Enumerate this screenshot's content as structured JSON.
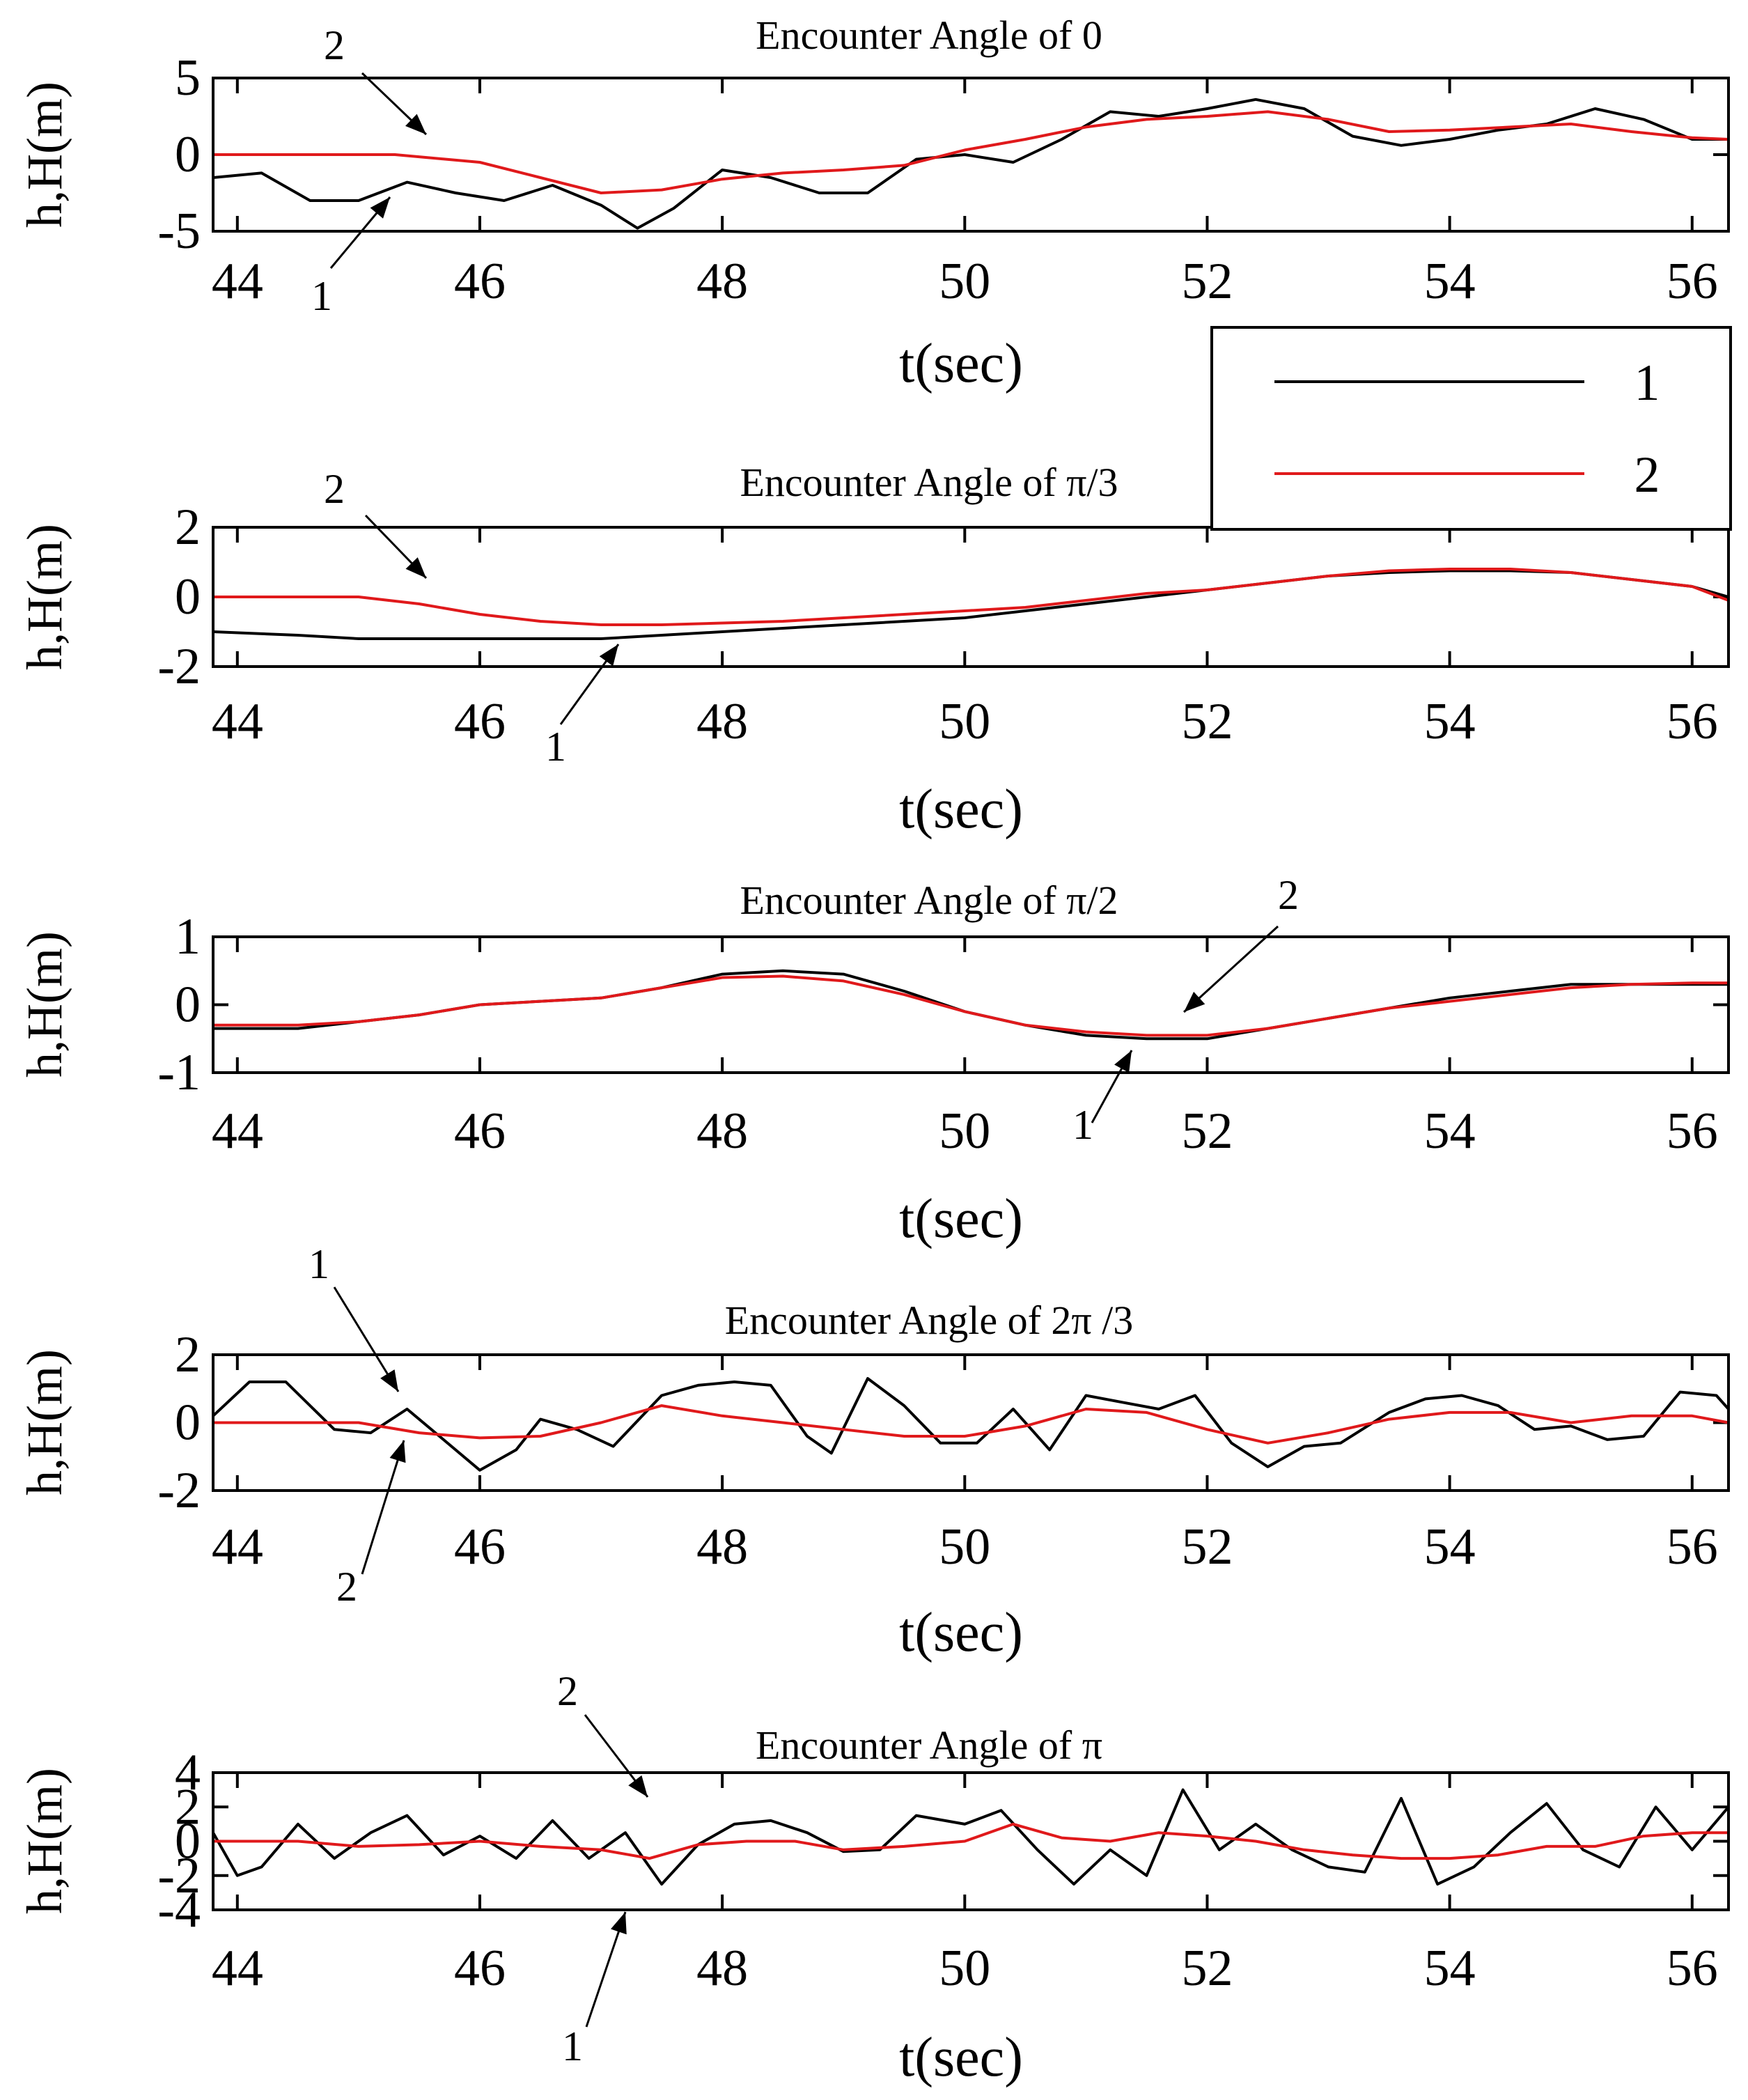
{
  "chart_data": [
    {
      "type": "line",
      "title": "Encounter Angle of 0",
      "xlabel": "t(sec)",
      "ylabel": "h,H(m)",
      "xlim": [
        43.8,
        56.3
      ],
      "ylim": [
        -5,
        5
      ],
      "xticks": [
        "44",
        "46",
        "48",
        "50",
        "52",
        "54",
        "56"
      ],
      "yticks": [
        "5",
        "0",
        "-5"
      ],
      "annotations": [
        "2",
        "1"
      ],
      "series": [
        {
          "name": "1",
          "color": "#000000",
          "x": [
            43.8,
            44.2,
            44.6,
            45.0,
            45.4,
            45.8,
            46.2,
            46.6,
            47.0,
            47.3,
            47.6,
            48.0,
            48.4,
            48.8,
            49.2,
            49.6,
            50.0,
            50.4,
            50.8,
            51.2,
            51.6,
            52.0,
            52.4,
            52.8,
            53.2,
            53.6,
            54.0,
            54.4,
            54.8,
            55.2,
            55.6,
            56.0,
            56.3
          ],
          "y": [
            -1.5,
            -1.2,
            -3.0,
            -3.0,
            -1.8,
            -2.5,
            -3.0,
            -2.0,
            -3.3,
            -4.8,
            -3.5,
            -1.0,
            -1.5,
            -2.5,
            -2.5,
            -0.3,
            0.0,
            -0.5,
            1.0,
            2.8,
            2.5,
            3.0,
            3.6,
            3.0,
            1.2,
            0.6,
            1.0,
            1.6,
            2.0,
            3.0,
            2.3,
            1.0,
            1.0
          ]
        },
        {
          "name": "2",
          "color": "#e0191b",
          "x": [
            43.8,
            44.5,
            45.3,
            46.0,
            46.5,
            47.0,
            47.5,
            48.0,
            48.5,
            49.0,
            49.5,
            50.0,
            50.5,
            51.0,
            51.5,
            52.0,
            52.5,
            53.0,
            53.5,
            54.0,
            54.5,
            55.0,
            55.5,
            56.0,
            56.3
          ],
          "y": [
            0.0,
            0.0,
            0.0,
            -0.5,
            -1.5,
            -2.5,
            -2.3,
            -1.6,
            -1.2,
            -1.0,
            -0.7,
            0.3,
            1.0,
            1.8,
            2.3,
            2.5,
            2.8,
            2.3,
            1.5,
            1.6,
            1.8,
            2.0,
            1.5,
            1.1,
            1.0
          ]
        }
      ]
    },
    {
      "type": "line",
      "title": "Encounter Angle of π/3",
      "xlabel": "t(sec)",
      "ylabel": "h,H(m)",
      "xlim": [
        43.8,
        56.3
      ],
      "ylim": [
        -2,
        2
      ],
      "xticks": [
        "44",
        "46",
        "48",
        "50",
        "52",
        "54",
        "56"
      ],
      "yticks": [
        "2",
        "0",
        "-2"
      ],
      "annotations": [
        "2",
        "1"
      ],
      "series": [
        {
          "name": "1",
          "color": "#000000",
          "x": [
            43.8,
            44.5,
            45.0,
            45.5,
            46.0,
            46.5,
            47.0,
            47.5,
            48.0,
            48.5,
            49.0,
            49.5,
            50.0,
            50.5,
            51.0,
            51.5,
            52.0,
            52.5,
            53.0,
            53.5,
            54.0,
            54.5,
            55.0,
            55.5,
            56.0,
            56.3
          ],
          "y": [
            -1.0,
            -1.1,
            -1.2,
            -1.2,
            -1.2,
            -1.2,
            -1.2,
            -1.1,
            -1.0,
            -0.9,
            -0.8,
            -0.7,
            -0.6,
            -0.4,
            -0.2,
            0.0,
            0.2,
            0.4,
            0.6,
            0.7,
            0.75,
            0.75,
            0.7,
            0.5,
            0.3,
            0.0
          ]
        },
        {
          "name": "2",
          "color": "#e0191b",
          "x": [
            43.8,
            44.5,
            45.0,
            45.5,
            46.0,
            46.5,
            47.0,
            47.5,
            48.0,
            48.5,
            49.0,
            49.5,
            50.0,
            50.5,
            51.0,
            51.5,
            52.0,
            52.5,
            53.0,
            53.5,
            54.0,
            54.5,
            55.0,
            55.5,
            56.0,
            56.3
          ],
          "y": [
            0.0,
            0.0,
            0.0,
            -0.2,
            -0.5,
            -0.7,
            -0.8,
            -0.8,
            -0.75,
            -0.7,
            -0.6,
            -0.5,
            -0.4,
            -0.3,
            -0.1,
            0.1,
            0.2,
            0.4,
            0.6,
            0.75,
            0.8,
            0.8,
            0.7,
            0.5,
            0.3,
            -0.1
          ]
        }
      ]
    },
    {
      "type": "line",
      "title": "Encounter Angle of π/2",
      "xlabel": "t(sec)",
      "ylabel": "h,H(m)",
      "xlim": [
        43.8,
        56.3
      ],
      "ylim": [
        -1,
        1
      ],
      "xticks": [
        "44",
        "46",
        "48",
        "50",
        "52",
        "54",
        "56"
      ],
      "yticks": [
        "1",
        "0",
        "-1"
      ],
      "annotations": [
        "2",
        "1"
      ],
      "series": [
        {
          "name": "1",
          "color": "#000000",
          "x": [
            43.8,
            44.5,
            45.0,
            45.5,
            46.0,
            46.5,
            47.0,
            47.5,
            48.0,
            48.5,
            49.0,
            49.5,
            50.0,
            50.5,
            51.0,
            51.5,
            52.0,
            52.5,
            53.0,
            53.5,
            54.0,
            54.5,
            55.0,
            55.5,
            56.0,
            56.3
          ],
          "y": [
            -0.35,
            -0.35,
            -0.25,
            -0.15,
            0.0,
            0.05,
            0.1,
            0.25,
            0.45,
            0.5,
            0.45,
            0.2,
            -0.1,
            -0.3,
            -0.45,
            -0.5,
            -0.5,
            -0.35,
            -0.2,
            -0.05,
            0.1,
            0.2,
            0.3,
            0.3,
            0.3,
            0.3
          ]
        },
        {
          "name": "2",
          "color": "#e0191b",
          "x": [
            43.8,
            44.5,
            45.0,
            45.5,
            46.0,
            46.5,
            47.0,
            47.5,
            48.0,
            48.5,
            49.0,
            49.5,
            50.0,
            50.5,
            51.0,
            51.5,
            52.0,
            52.5,
            53.0,
            53.5,
            54.0,
            54.5,
            55.0,
            55.5,
            56.0,
            56.3
          ],
          "y": [
            -0.3,
            -0.3,
            -0.25,
            -0.15,
            0.0,
            0.05,
            0.1,
            0.25,
            0.4,
            0.42,
            0.35,
            0.15,
            -0.1,
            -0.3,
            -0.4,
            -0.45,
            -0.45,
            -0.35,
            -0.2,
            -0.05,
            0.05,
            0.15,
            0.25,
            0.3,
            0.32,
            0.32
          ]
        }
      ]
    },
    {
      "type": "line",
      "title": "Encounter Angle of 2π /3",
      "xlabel": "t(sec)",
      "ylabel": "h,H(m)",
      "xlim": [
        43.8,
        56.3
      ],
      "ylim": [
        -2,
        2
      ],
      "xticks": [
        "44",
        "46",
        "48",
        "50",
        "52",
        "54",
        "56"
      ],
      "yticks": [
        "2",
        "0",
        "-2"
      ],
      "annotations": [
        "1",
        "2"
      ],
      "series": [
        {
          "name": "1",
          "color": "#000000",
          "x": [
            43.8,
            44.1,
            44.4,
            44.8,
            45.1,
            45.4,
            45.7,
            46.0,
            46.3,
            46.5,
            46.8,
            47.1,
            47.5,
            47.8,
            48.1,
            48.4,
            48.7,
            48.9,
            49.2,
            49.5,
            49.8,
            50.1,
            50.4,
            50.7,
            51.0,
            51.3,
            51.6,
            51.9,
            52.2,
            52.5,
            52.8,
            53.1,
            53.5,
            53.8,
            54.1,
            54.4,
            54.7,
            55.0,
            55.3,
            55.6,
            55.9,
            56.2,
            56.3
          ],
          "y": [
            0.2,
            1.2,
            1.2,
            -0.2,
            -0.3,
            0.4,
            -0.5,
            -1.4,
            -0.8,
            0.1,
            -0.2,
            -0.7,
            0.8,
            1.1,
            1.2,
            1.1,
            -0.4,
            -0.9,
            1.3,
            0.5,
            -0.6,
            -0.6,
            0.4,
            -0.8,
            0.8,
            0.6,
            0.4,
            0.8,
            -0.6,
            -1.3,
            -0.7,
            -0.6,
            0.3,
            0.7,
            0.8,
            0.5,
            -0.2,
            -0.1,
            -0.5,
            -0.4,
            0.9,
            0.8,
            0.4
          ]
        },
        {
          "name": "2",
          "color": "#e0191b",
          "x": [
            43.8,
            44.5,
            45.0,
            45.5,
            46.0,
            46.5,
            47.0,
            47.5,
            48.0,
            48.5,
            49.0,
            49.5,
            50.0,
            50.5,
            51.0,
            51.5,
            52.0,
            52.5,
            53.0,
            53.5,
            54.0,
            54.5,
            55.0,
            55.5,
            56.0,
            56.3
          ],
          "y": [
            0.0,
            0.0,
            0.0,
            -0.3,
            -0.45,
            -0.4,
            0.0,
            0.5,
            0.2,
            0.0,
            -0.2,
            -0.4,
            -0.4,
            -0.1,
            0.4,
            0.3,
            -0.2,
            -0.6,
            -0.3,
            0.1,
            0.3,
            0.3,
            0.0,
            0.2,
            0.2,
            0.0
          ]
        }
      ]
    },
    {
      "type": "line",
      "title": "Encounter Angle of π",
      "xlabel": "t(sec)",
      "ylabel": "h,H(m)",
      "xlim": [
        43.8,
        56.3
      ],
      "ylim": [
        -4,
        4
      ],
      "xticks": [
        "44",
        "46",
        "48",
        "50",
        "52",
        "54",
        "56"
      ],
      "yticks": [
        "4",
        "2",
        "0",
        "-2",
        "-4"
      ],
      "annotations": [
        "2",
        "1"
      ],
      "series": [
        {
          "name": "1",
          "color": "#000000",
          "x": [
            43.8,
            44.0,
            44.2,
            44.5,
            44.8,
            45.1,
            45.4,
            45.7,
            46.0,
            46.3,
            46.6,
            46.9,
            47.2,
            47.5,
            47.8,
            48.1,
            48.4,
            48.7,
            49.0,
            49.3,
            49.6,
            50.0,
            50.3,
            50.6,
            50.9,
            51.2,
            51.5,
            51.8,
            52.1,
            52.4,
            52.7,
            53.0,
            53.3,
            53.6,
            53.9,
            54.2,
            54.5,
            54.8,
            55.1,
            55.4,
            55.7,
            56.0,
            56.3
          ],
          "y": [
            0.5,
            -2.0,
            -1.5,
            1.0,
            -1.0,
            0.5,
            1.5,
            -0.8,
            0.3,
            -1.0,
            1.2,
            -1.0,
            0.5,
            -2.5,
            -0.2,
            1.0,
            1.2,
            0.5,
            -0.6,
            -0.5,
            1.5,
            1.0,
            1.8,
            -0.5,
            -2.5,
            -0.5,
            -2.0,
            3.0,
            -0.5,
            1.0,
            -0.5,
            -1.5,
            -1.8,
            2.5,
            -2.5,
            -1.5,
            0.5,
            2.2,
            -0.5,
            -1.5,
            2.0,
            -0.5,
            2.0
          ]
        },
        {
          "name": "2",
          "color": "#e0191b",
          "x": [
            43.8,
            44.5,
            45.0,
            45.5,
            46.0,
            46.5,
            47.0,
            47.4,
            47.8,
            48.2,
            48.6,
            49.0,
            49.5,
            50.0,
            50.4,
            50.8,
            51.2,
            51.6,
            52.0,
            52.4,
            52.8,
            53.2,
            53.6,
            54.0,
            54.4,
            54.8,
            55.2,
            55.6,
            56.0,
            56.3
          ],
          "y": [
            0.0,
            0.0,
            -0.3,
            -0.2,
            0.0,
            -0.3,
            -0.5,
            -1.0,
            -0.2,
            0.0,
            0.0,
            -0.5,
            -0.3,
            0.0,
            1.0,
            0.2,
            0.0,
            0.5,
            0.3,
            0.0,
            -0.5,
            -0.8,
            -1.0,
            -1.0,
            -0.8,
            -0.3,
            -0.3,
            0.3,
            0.5,
            0.5
          ]
        }
      ]
    }
  ],
  "legend": {
    "entries": [
      {
        "label": "1",
        "color": "#000000"
      },
      {
        "label": "2",
        "color": "#e0191b"
      }
    ]
  }
}
